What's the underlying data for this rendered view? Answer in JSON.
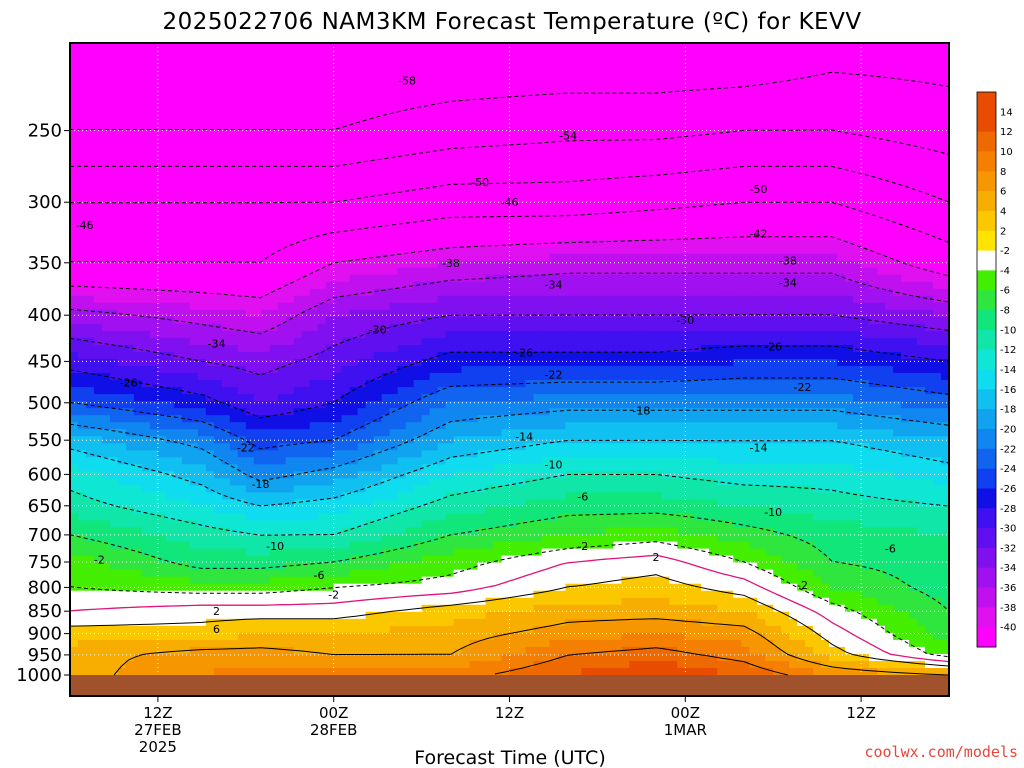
{
  "chart_data": {
    "type": "time-height contour",
    "title": "2025022706 NAM3KM Forecast Temperature (ºC) for KEVV",
    "xlabel": "Forecast Time (UTC)",
    "ylabel": "",
    "y_axis": "pressure (hPa), log scale, inverted",
    "ylim": [
      1000,
      200
    ],
    "yticks": [
      250,
      300,
      350,
      400,
      450,
      500,
      550,
      600,
      650,
      700,
      750,
      800,
      850,
      900,
      950,
      1000
    ],
    "xlim_hours": [
      0,
      60
    ],
    "xticks": [
      {
        "hour": 6,
        "line1": "12Z",
        "line2": "27FEB",
        "line3": "2025"
      },
      {
        "hour": 18,
        "line1": "00Z",
        "line2": "28FEB",
        "line3": ""
      },
      {
        "hour": 30,
        "line1": "12Z",
        "line2": "",
        "line3": ""
      },
      {
        "hour": 42,
        "line1": "00Z",
        "line2": "1MAR",
        "line3": ""
      },
      {
        "hour": 54,
        "line1": "12Z",
        "line2": "",
        "line3": ""
      }
    ],
    "grid": true,
    "colorbar": {
      "placement": "right",
      "labels": [
        "14",
        "12",
        "10",
        "8",
        "6",
        "4",
        "2",
        "-2",
        "-4",
        "-6",
        "-8",
        "-10",
        "-12",
        "-14",
        "-16",
        "-18",
        "-20",
        "-22",
        "-24",
        "-26",
        "-28",
        "-30",
        "-32",
        "-34",
        "-36",
        "-38",
        "-40"
      ],
      "colors": [
        "#e84c00",
        "#ee6a00",
        "#f47f00",
        "#f69600",
        "#f8ae00",
        "#fbc800",
        "#ffe400",
        "#ffffff",
        "#44ee00",
        "#2ee63e",
        "#10e67a",
        "#10e6a8",
        "#10e6d4",
        "#10dcf0",
        "#10c0f0",
        "#10a4f0",
        "#1086f0",
        "#1064f0",
        "#1040f0",
        "#1010e6",
        "#3f10f0",
        "#6010f0",
        "#8010f0",
        "#a010f0",
        "#c010f0",
        "#e010f0",
        "#ff00ff"
      ],
      "extra_top_color": "#e84c00",
      "bottom_color": "#ff00ff"
    },
    "ground_color": "#a0522d",
    "temperature_profiles": [
      {
        "hour": 0,
        "p": [
          1000,
          950,
          900,
          850,
          800,
          750,
          700,
          650,
          600,
          550,
          500,
          450,
          400,
          350,
          300,
          250,
          200
        ],
        "t": [
          5,
          5,
          3,
          0,
          -2,
          -3,
          -6,
          -9,
          -11,
          -15,
          -22,
          -27,
          -33,
          -42,
          -46,
          -54,
          -58
        ]
      },
      {
        "hour": 9,
        "p": [
          1000,
          950,
          900,
          850,
          800,
          750,
          700,
          650,
          600,
          550,
          500,
          450,
          400,
          350,
          300,
          250,
          200
        ],
        "t": [
          8,
          7,
          3,
          1,
          -3,
          -7,
          -9,
          -12,
          -15,
          -19,
          -25,
          -30,
          -35,
          -42,
          -46,
          -54,
          -58
        ]
      },
      {
        "hour": 13,
        "p": [
          1000,
          950,
          900,
          850,
          800,
          750,
          700,
          650,
          600,
          550,
          500,
          450,
          400,
          350,
          300,
          250,
          200
        ],
        "t": [
          9,
          7,
          4,
          1,
          -3,
          -7,
          -10,
          -14,
          -19,
          -23,
          -28,
          -31,
          -36,
          -42,
          -46,
          -54,
          -58
        ]
      },
      {
        "hour": 18,
        "p": [
          1000,
          950,
          900,
          850,
          800,
          750,
          700,
          650,
          600,
          550,
          500,
          450,
          400,
          350,
          300,
          250,
          200
        ],
        "t": [
          9,
          6,
          4,
          1,
          -2,
          -6,
          -10,
          -13,
          -17,
          -22,
          -26,
          -29,
          -32,
          -38,
          -46,
          -54,
          -58
        ]
      },
      {
        "hour": 26,
        "p": [
          1000,
          950,
          900,
          850,
          800,
          750,
          700,
          650,
          600,
          550,
          500,
          450,
          400,
          350,
          300,
          250,
          200
        ],
        "t": [
          9,
          6,
          5,
          3,
          -1,
          -3,
          -6,
          -9,
          -12,
          -16,
          -20,
          -25,
          -30,
          -36,
          -44,
          -52,
          -58
        ]
      },
      {
        "hour": 34,
        "p": [
          1000,
          950,
          900,
          850,
          800,
          750,
          700,
          650,
          600,
          550,
          500,
          450,
          400,
          350,
          300,
          250,
          200
        ],
        "t": [
          12,
          10,
          7,
          5,
          2,
          0,
          -4,
          -7,
          -10,
          -14,
          -19,
          -25,
          -30,
          -35,
          -44,
          -51,
          -58
        ]
      },
      {
        "hour": 40,
        "p": [
          1000,
          950,
          900,
          850,
          800,
          750,
          700,
          650,
          600,
          550,
          500,
          450,
          400,
          350,
          300,
          250,
          200
        ],
        "t": [
          14,
          11,
          8,
          5,
          3,
          1,
          -3,
          -7,
          -10,
          -14,
          -19,
          -25,
          -30,
          -35,
          -43,
          -51,
          -58
        ]
      },
      {
        "hour": 46,
        "p": [
          1000,
          950,
          900,
          850,
          800,
          750,
          700,
          650,
          600,
          550,
          500,
          450,
          400,
          350,
          300,
          250,
          200
        ],
        "t": [
          12,
          9,
          7,
          4,
          1,
          -2,
          -5,
          -8,
          -11,
          -14,
          -19,
          -24,
          -30,
          -35,
          -42,
          -50,
          -58
        ]
      },
      {
        "hour": 52,
        "p": [
          1000,
          950,
          900,
          850,
          800,
          750,
          700,
          650,
          600,
          550,
          500,
          450,
          400,
          350,
          300,
          250,
          200
        ],
        "t": [
          8,
          3,
          1,
          -1,
          -4,
          -6,
          -7,
          -9,
          -11,
          -14,
          -19,
          -24,
          -30,
          -35,
          -42,
          -50,
          -56
        ]
      },
      {
        "hour": 60,
        "p": [
          1000,
          950,
          900,
          850,
          800,
          750,
          700,
          650,
          600,
          550,
          500,
          450,
          400,
          350,
          300,
          250,
          200
        ],
        "t": [
          6,
          -3,
          -5,
          -6,
          -7,
          -7,
          -8,
          -10,
          -13,
          -16,
          -21,
          -26,
          -32,
          -40,
          -46,
          -52,
          -56
        ]
      }
    ],
    "contour_labels": [
      {
        "text": "-58",
        "hour": 23,
        "p": 220
      },
      {
        "text": "-54",
        "hour": 34,
        "p": 253
      },
      {
        "text": "-50",
        "hour": 28,
        "p": 285
      },
      {
        "text": "-50",
        "hour": 47,
        "p": 290
      },
      {
        "text": "-46",
        "hour": 1,
        "p": 318
      },
      {
        "text": "-46",
        "hour": 30,
        "p": 300
      },
      {
        "text": "-42",
        "hour": 47,
        "p": 325
      },
      {
        "text": "-38",
        "hour": 26,
        "p": 350
      },
      {
        "text": "-38",
        "hour": 49,
        "p": 348
      },
      {
        "text": "-34",
        "hour": 33,
        "p": 370
      },
      {
        "text": "-34",
        "hour": 49,
        "p": 368
      },
      {
        "text": "-34",
        "hour": 10,
        "p": 430
      },
      {
        "text": "-30",
        "hour": 21,
        "p": 415
      },
      {
        "text": "-30",
        "hour": 42,
        "p": 405
      },
      {
        "text": "-26",
        "hour": 31,
        "p": 440
      },
      {
        "text": "-26",
        "hour": 48,
        "p": 433
      },
      {
        "text": "-26",
        "hour": 4,
        "p": 475
      },
      {
        "text": "-22",
        "hour": 33,
        "p": 465
      },
      {
        "text": "-22",
        "hour": 50,
        "p": 480
      },
      {
        "text": "-22",
        "hour": 12,
        "p": 560
      },
      {
        "text": "-18",
        "hour": 39,
        "p": 510
      },
      {
        "text": "-18",
        "hour": 13,
        "p": 615
      },
      {
        "text": "-14",
        "hour": 31,
        "p": 545
      },
      {
        "text": "-14",
        "hour": 47,
        "p": 560
      },
      {
        "text": "-10",
        "hour": 33,
        "p": 585
      },
      {
        "text": "-10",
        "hour": 48,
        "p": 660
      },
      {
        "text": "-10",
        "hour": 14,
        "p": 720
      },
      {
        "text": "-6",
        "hour": 35,
        "p": 635
      },
      {
        "text": "-6",
        "hour": 56,
        "p": 725
      },
      {
        "text": "-6",
        "hour": 17,
        "p": 775
      },
      {
        "text": "-2",
        "hour": 35,
        "p": 720
      },
      {
        "text": "-2",
        "hour": 2,
        "p": 745
      },
      {
        "text": "-2",
        "hour": 50,
        "p": 795
      },
      {
        "text": "-2",
        "hour": 18,
        "p": 815
      },
      {
        "text": "2",
        "hour": 40,
        "p": 740
      },
      {
        "text": "2",
        "hour": 10,
        "p": 850
      },
      {
        "text": "6",
        "hour": 10,
        "p": 890
      }
    ],
    "credit": "coolwx.com/models"
  }
}
